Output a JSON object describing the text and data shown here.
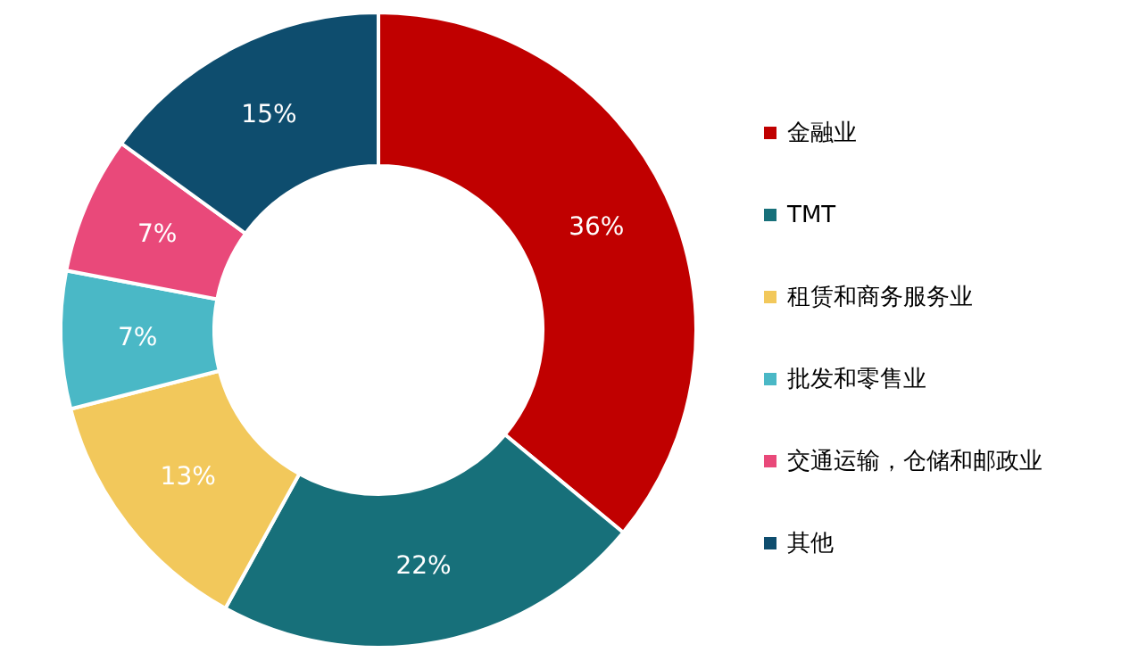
{
  "chart_data": {
    "type": "donut",
    "categories": [
      "金融业",
      "TMT",
      "租赁和商务服务业",
      "批发和零售业",
      "交通运输，仓储和邮政业",
      "其他"
    ],
    "values": [
      36,
      22,
      13,
      7,
      7,
      15
    ],
    "colors": [
      "#c00000",
      "#17707a",
      "#f2c85b",
      "#4ab8c6",
      "#e9497a",
      "#0e4d6e"
    ],
    "value_labels": [
      "36%",
      "22%",
      "13%",
      "7%",
      "7%",
      "15%"
    ],
    "legend": "right"
  }
}
